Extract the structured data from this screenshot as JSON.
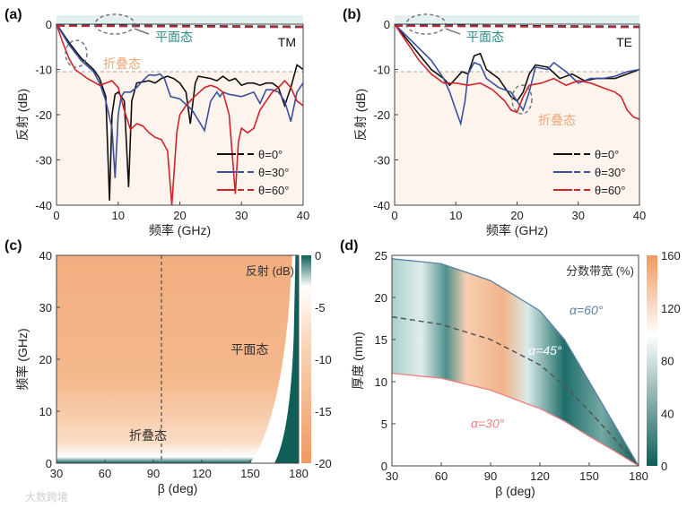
{
  "watermark": "大数跨境",
  "chart_data": [
    {
      "panel": "(a)",
      "type": "line",
      "mode": "TM",
      "xlabel": "频率 (GHz)",
      "ylabel": "反射 (dB)",
      "xlim": [
        0,
        40
      ],
      "ylim": [
        -40,
        2
      ],
      "xticks": [
        "0",
        "10",
        "20",
        "30",
        "40"
      ],
      "yticks": [
        "0",
        "-10",
        "-20",
        "-30",
        "-40"
      ],
      "threshold_db": -10.5,
      "annotations": {
        "flat": "平面态",
        "folded": "折叠态"
      },
      "legend": [
        "θ=0°",
        "θ=30°",
        "θ=60°"
      ],
      "series": [
        {
          "name": "θ=0°",
          "color": "#111111",
          "x": [
            0,
            2,
            4,
            6,
            7,
            8,
            8.6,
            9,
            9.5,
            10,
            11,
            11.7,
            12.2,
            13,
            15,
            16,
            17,
            18,
            19,
            20,
            21,
            21.7,
            22.5,
            23,
            25,
            26,
            27,
            28,
            29,
            30,
            31,
            32,
            33,
            34,
            35,
            36,
            37,
            38,
            39,
            40
          ],
          "y": [
            0,
            -4,
            -7.5,
            -10,
            -12,
            -16,
            -39,
            -20,
            -15.5,
            -15,
            -17,
            -36,
            -17,
            -13,
            -12.5,
            -13,
            -12,
            -11.5,
            -12,
            -13,
            -15,
            -22,
            -13,
            -11.5,
            -12,
            -12.5,
            -11.5,
            -12.5,
            -12,
            -13.5,
            -13,
            -13,
            -13.5,
            -13,
            -13,
            -14,
            -18,
            -14,
            -9,
            -10
          ],
          "flat": -0.2
        },
        {
          "name": "θ=30°",
          "color": "#3a4fa0",
          "x": [
            0,
            2,
            4,
            6,
            7,
            8,
            9,
            9.5,
            10,
            10.5,
            11,
            12,
            13,
            14,
            15,
            16,
            16.8,
            17.5,
            18.5,
            20,
            22,
            24,
            25,
            26,
            26.5,
            27,
            28,
            30,
            32,
            33,
            34,
            35,
            36,
            37,
            38,
            39,
            40
          ],
          "y": [
            0,
            -4.5,
            -8,
            -10.5,
            -13,
            -17,
            -23,
            -34,
            -20,
            -16,
            -15,
            -15,
            -14,
            -12.5,
            -11.2,
            -11.3,
            -11,
            -12,
            -16,
            -16.5,
            -19,
            -23.5,
            -17,
            -15,
            -16,
            -15,
            -15.5,
            -16,
            -15,
            -17.5,
            -14.5,
            -14.5,
            -15,
            -17,
            -21.5,
            -15,
            -13
          ],
          "flat": -0.3
        },
        {
          "name": "θ=60°",
          "color": "#d0242b",
          "x": [
            0,
            1,
            2,
            3,
            5,
            7,
            8,
            9,
            10,
            11,
            12,
            13,
            14,
            15,
            16,
            17,
            18,
            18.7,
            19.5,
            20,
            21,
            22,
            24,
            25,
            26,
            27,
            28,
            29,
            29.5,
            30,
            31,
            32,
            33,
            34,
            35,
            36,
            37,
            38,
            39,
            40
          ],
          "y": [
            0,
            -4,
            -7.5,
            -10,
            -12,
            -13.5,
            -13,
            -12.5,
            -14,
            -19,
            -23.3,
            -22,
            -22.5,
            -24,
            -25,
            -25.5,
            -28,
            -40,
            -24,
            -20,
            -18,
            -16.5,
            -14,
            -13.5,
            -14,
            -15,
            -20,
            -37.5,
            -26,
            -23,
            -24,
            -23,
            -19,
            -17,
            -15,
            -14,
            -12.5,
            -14,
            -17,
            -18
          ],
          "flat": -0.4
        }
      ]
    },
    {
      "panel": "(b)",
      "type": "line",
      "mode": "TE",
      "xlabel": "频率 (GHz)",
      "ylabel": "反射 (dB)",
      "xlim": [
        0,
        40
      ],
      "ylim": [
        -40,
        2
      ],
      "xticks": [
        "0",
        "10",
        "20",
        "30",
        "40"
      ],
      "yticks": [
        "0",
        "-10",
        "-20",
        "-30",
        "-40"
      ],
      "threshold_db": -10.5,
      "annotations": {
        "flat": "平面态",
        "folded": "折叠态"
      },
      "legend": [
        "θ=0°",
        "θ=30°",
        "θ=60°"
      ],
      "series": [
        {
          "name": "θ=0°",
          "color": "#111111",
          "x": [
            0,
            3,
            6,
            8,
            9,
            10,
            11,
            12,
            13,
            14,
            15,
            17,
            18,
            19,
            20,
            21,
            22,
            23,
            25,
            27,
            29,
            31,
            33,
            36,
            38,
            40
          ],
          "y": [
            0,
            -5,
            -10,
            -12,
            -13.5,
            -12,
            -10.5,
            -11,
            -7,
            -6.5,
            -10,
            -12,
            -14,
            -16,
            -17,
            -15,
            -11,
            -9,
            -9.5,
            -12,
            -11,
            -12.5,
            -12,
            -12,
            -11,
            -10
          ],
          "flat": -0.2
        },
        {
          "name": "θ=30°",
          "color": "#3a4fa0",
          "x": [
            0,
            3,
            6,
            8,
            9,
            10,
            10.8,
            11.5,
            12,
            13,
            14,
            15,
            17,
            19,
            21,
            22,
            23,
            25,
            26,
            28,
            30,
            32,
            34,
            36,
            38,
            40
          ],
          "y": [
            0,
            -4,
            -8,
            -12,
            -15,
            -19,
            -22,
            -17,
            -11,
            -8.5,
            -9,
            -12,
            -14,
            -15,
            -19,
            -15,
            -9.5,
            -10,
            -8.5,
            -10.5,
            -13,
            -12,
            -12,
            -11.5,
            -10.5,
            -10
          ],
          "flat": -0.3
        },
        {
          "name": "θ=60°",
          "color": "#d0242b",
          "x": [
            0,
            2,
            4,
            6,
            8,
            10,
            12,
            14,
            16,
            18,
            19,
            20,
            21,
            22,
            24,
            26,
            28,
            30,
            32,
            34,
            36,
            37,
            38,
            39,
            40
          ],
          "y": [
            0,
            -4,
            -8,
            -11,
            -13,
            -13,
            -13.5,
            -13,
            -14.5,
            -17,
            -19,
            -19.5,
            -16,
            -13.5,
            -13,
            -12,
            -13.5,
            -12.5,
            -13,
            -14,
            -15,
            -16,
            -19,
            -20.5,
            -21
          ],
          "flat": -0.4
        }
      ]
    },
    {
      "panel": "(c)",
      "type": "heatmap",
      "title": "反射 (dB)",
      "xlabel": "β (deg)",
      "ylabel": "频率 (GHz)",
      "xlim": [
        30,
        180
      ],
      "ylim": [
        0,
        40
      ],
      "xticks": [
        "30",
        "60",
        "90",
        "120",
        "150",
        "180"
      ],
      "yticks": [
        "0",
        "10",
        "20",
        "30",
        "40"
      ],
      "colorbar": {
        "ticks": [
          "0",
          "-5",
          "-10",
          "-15",
          "-20"
        ],
        "range": [
          -20,
          0
        ]
      },
      "marker_beta": 95,
      "annotations": {
        "flat": "平面态",
        "folded": "折叠态"
      }
    },
    {
      "panel": "(d)",
      "type": "heatmap",
      "title": "分数带宽 (%)",
      "xlabel": "β (deg)",
      "ylabel": "厚度 (mm)",
      "xlim": [
        30,
        180
      ],
      "ylim": [
        0,
        25
      ],
      "xticks": [
        "30",
        "60",
        "90",
        "120",
        "150",
        "180"
      ],
      "yticks": [
        "0",
        "5",
        "10",
        "15",
        "20",
        "25"
      ],
      "colorbar": {
        "ticks": [
          "160",
          "120",
          "80",
          "40",
          "0"
        ],
        "range": [
          0,
          160
        ]
      },
      "boundaries": [
        {
          "name": "α=60°",
          "color": "#5b7fa6",
          "x": [
            30,
            60,
            90,
            120,
            135,
            150,
            165,
            180
          ],
          "y": [
            24.6,
            24,
            22,
            18.4,
            15,
            10,
            5,
            0
          ]
        },
        {
          "name": "α=45°",
          "color": "#555555",
          "x": [
            30,
            60,
            90,
            120,
            135,
            150,
            165,
            180
          ],
          "y": [
            17.7,
            16.8,
            15,
            12,
            9.5,
            6.5,
            3.3,
            0
          ]
        },
        {
          "name": "α=30°",
          "color": "#f08080",
          "x": [
            30,
            60,
            90,
            120,
            135,
            150,
            165,
            180
          ],
          "y": [
            11,
            10.4,
            9,
            6.8,
            5.3,
            3.5,
            1.8,
            0
          ]
        }
      ]
    }
  ]
}
